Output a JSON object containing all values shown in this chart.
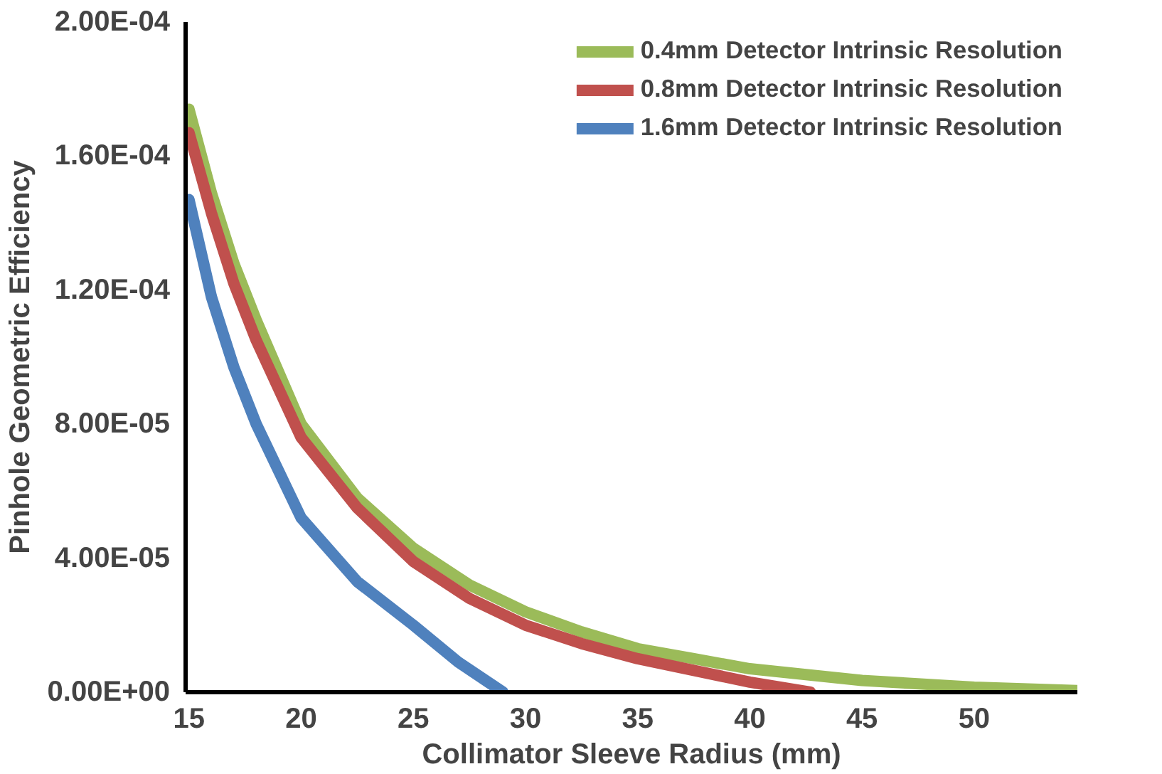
{
  "chart_data": {
    "type": "line",
    "xlabel": "Collimator Sleeve Radius (mm)",
    "ylabel": "Pinhole Geometric Efficiency",
    "xlim": [
      14.85,
      54.6
    ],
    "xticks": [
      15,
      20,
      25,
      30,
      35,
      40,
      45,
      50
    ],
    "ylim": [
      0,
      0.0002
    ],
    "yticks": [
      {
        "value": 0,
        "label": "0.00E+00"
      },
      {
        "value": 4e-05,
        "label": "4.00E-05"
      },
      {
        "value": 8e-05,
        "label": "8.00E-05"
      },
      {
        "value": 0.00012,
        "label": "1.20E-04"
      },
      {
        "value": 0.00016,
        "label": "1.60E-04"
      },
      {
        "value": 0.0002,
        "label": "2.00E-04"
      }
    ],
    "grid": false,
    "legend": "top right",
    "marker": "none",
    "line_style": "solid",
    "series": [
      {
        "name": "0.4mm Detector Intrinsic Resolution",
        "color": "#9bbb59",
        "x": [
          15,
          16,
          17,
          18,
          20,
          22.5,
          25,
          27.5,
          30,
          32.5,
          35,
          37.5,
          40,
          45,
          50,
          54.6
        ],
        "values": [
          0.000174,
          0.000149,
          0.000128,
          0.000111,
          8e-05,
          5.8e-05,
          4.3e-05,
          3.2e-05,
          2.4e-05,
          1.8e-05,
          1.3e-05,
          1e-05,
          7e-06,
          3.5e-06,
          1.5e-06,
          5e-07
        ]
      },
      {
        "name": "0.8mm Detector Intrinsic Resolution",
        "color": "#c0504d",
        "x": [
          15,
          16,
          17,
          18,
          20,
          22.5,
          25,
          27.5,
          30,
          32.5,
          35,
          37.5,
          40,
          42.7
        ],
        "values": [
          0.000167,
          0.000143,
          0.000122,
          0.000105,
          7.6e-05,
          5.5e-05,
          3.9e-05,
          2.8e-05,
          2e-05,
          1.45e-05,
          1e-05,
          6.5e-06,
          3e-06,
          0
        ]
      },
      {
        "name": "1.6mm Detector Intrinsic Resolution",
        "color": "#4f81bd",
        "x": [
          15,
          16,
          17,
          18,
          20,
          22.5,
          25,
          27,
          29
        ],
        "values": [
          0.000147,
          0.000118,
          9.7e-05,
          8e-05,
          5.2e-05,
          3.3e-05,
          2e-05,
          9e-06,
          0
        ]
      }
    ]
  }
}
